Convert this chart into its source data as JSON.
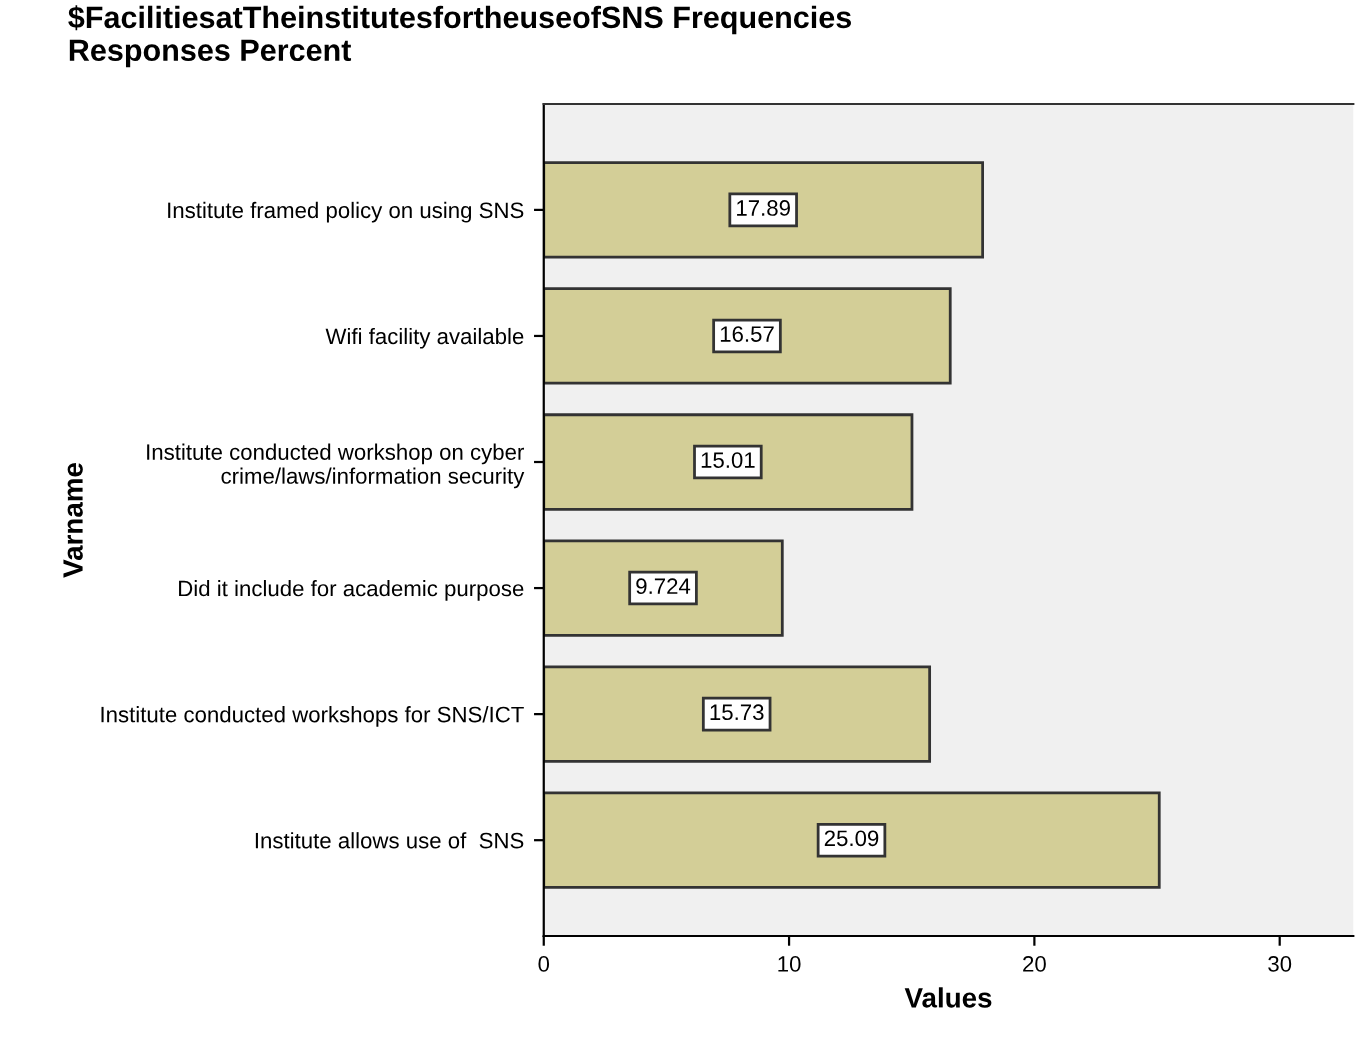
{
  "chart_data": {
    "type": "bar",
    "orientation": "horizontal",
    "title": "$FacilitiesatTheinstitutesfortheuseofSNS Frequencies\nResponses Percent",
    "xlabel": "Values",
    "ylabel": "Varname",
    "categories": [
      "Institute framed policy on using SNS",
      "Wifi facility available",
      "Institute conducted workshop on cyber\ncrime/laws/information security",
      "Did it include for academic purpose",
      "Institute conducted workshops for SNS/ICT",
      "Institute allows use of  SNS"
    ],
    "values": [
      17.89,
      16.57,
      15.01,
      9.724,
      15.73,
      25.09
    ],
    "color": "#d3ce97",
    "data_labels": true,
    "xlim": [
      0,
      33
    ],
    "xticks": [
      0,
      10,
      20,
      30
    ],
    "grid": false
  }
}
